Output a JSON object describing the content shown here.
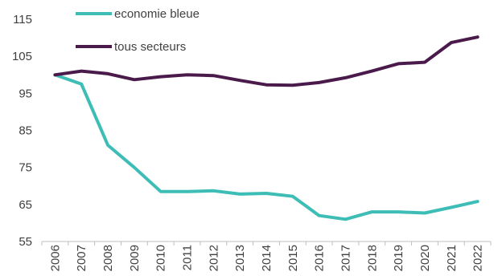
{
  "chart_data": {
    "type": "line",
    "title": "",
    "xlabel": "",
    "ylabel": "",
    "x": [
      "2006",
      "2007",
      "2008",
      "2009",
      "2010",
      "2011",
      "2012",
      "2013",
      "2014",
      "2015",
      "2016",
      "2017",
      "2018",
      "2019",
      "2020",
      "2021",
      "2022"
    ],
    "ylim": [
      55,
      115
    ],
    "yticks": [
      55,
      65,
      75,
      85,
      95,
      105,
      115
    ],
    "grid": false,
    "legend_position": "top-left",
    "series": [
      {
        "name": "economie bleue",
        "color": "#3dbdb6",
        "values": [
          100,
          97.5,
          81,
          75,
          68.5,
          68.5,
          68.7,
          67.8,
          68,
          67.2,
          62,
          61,
          63,
          63,
          62.7,
          64.2,
          65.8
        ]
      },
      {
        "name": "tous secteurs",
        "color": "#4a1a4a",
        "values": [
          100,
          101,
          100.3,
          98.7,
          99.5,
          100,
          99.8,
          98.5,
          97.3,
          97.2,
          97.9,
          99.2,
          101,
          103,
          103.4,
          108.7,
          110.2
        ]
      }
    ]
  }
}
